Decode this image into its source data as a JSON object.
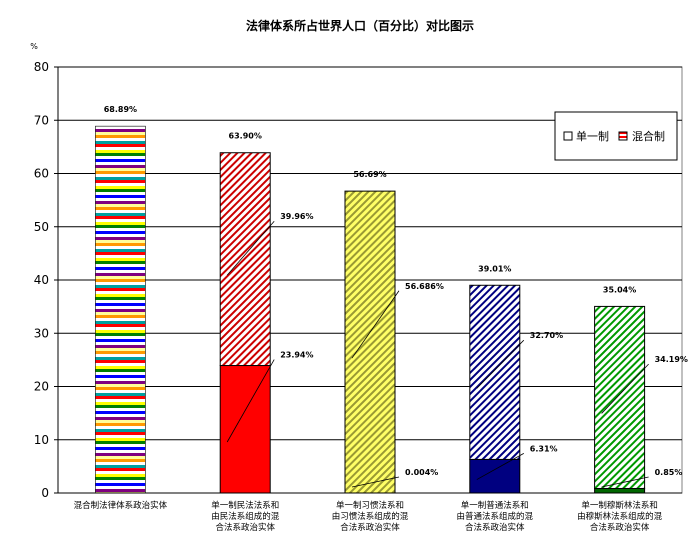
{
  "chart_data": {
    "type": "bar",
    "stacked": true,
    "title": "法律体系所占世界人口（百分比）对比图示",
    "yunit": "%",
    "ylim": [
      0,
      80
    ],
    "yticks": [
      "0",
      "10",
      "20",
      "30",
      "40",
      "50",
      "60",
      "70",
      "80"
    ],
    "grid": true,
    "legend_position": "top-right",
    "categories": [
      [
        "混合制法律体系政治实体"
      ],
      [
        "单一制民法法系和",
        "由民法系组成的混",
        "合法系政治实体"
      ],
      [
        "单一制习惯法系和",
        "由习惯法系组成的混",
        "合法系政治实体"
      ],
      [
        "单一制普通法系和",
        "由普通法系组成的混",
        "合法系政治实体"
      ],
      [
        "单一制穆斯林法系和",
        "由穆斯林法系组成的混",
        "合法系政治实体"
      ]
    ],
    "series": [
      {
        "name": "单一制",
        "values": [
          0,
          23.94,
          0.004,
          6.31,
          0.85
        ],
        "labels": [
          "",
          "23.94%",
          "0.004%",
          "6.31%",
          "0.85%"
        ]
      },
      {
        "name": "混合制",
        "values": [
          68.89,
          39.96,
          56.686,
          32.7,
          34.19
        ],
        "labels": [
          "",
          "39.96%",
          "56.686%",
          "32.70%",
          "34.19%"
        ]
      }
    ],
    "totals": [
      68.89,
      63.9,
      56.69,
      39.01,
      35.04
    ],
    "total_labels": [
      "68.89%",
      "63.90%",
      "56.69%",
      "39.01%",
      "35.04%"
    ],
    "colors": {
      "plot_bg": "#ffffff",
      "grid": "#000000",
      "legend_single": "#ffffff",
      "legend_mixed": "#ff0000",
      "bars": [
        {
          "solid": null,
          "hatch_bg": null,
          "hatch_fg": null
        },
        {
          "solid": "#ff0000",
          "hatch_bg": "#ffffff",
          "hatch_fg": "#cc0000"
        },
        {
          "solid": "#ffff66",
          "hatch_bg": "#ffff66",
          "hatch_fg": "#999933"
        },
        {
          "solid": "#000080",
          "hatch_bg": "#ffffff",
          "hatch_fg": "#000080"
        },
        {
          "solid": "#006600",
          "hatch_bg": "#ffffff",
          "hatch_fg": "#009900"
        }
      ]
    }
  }
}
